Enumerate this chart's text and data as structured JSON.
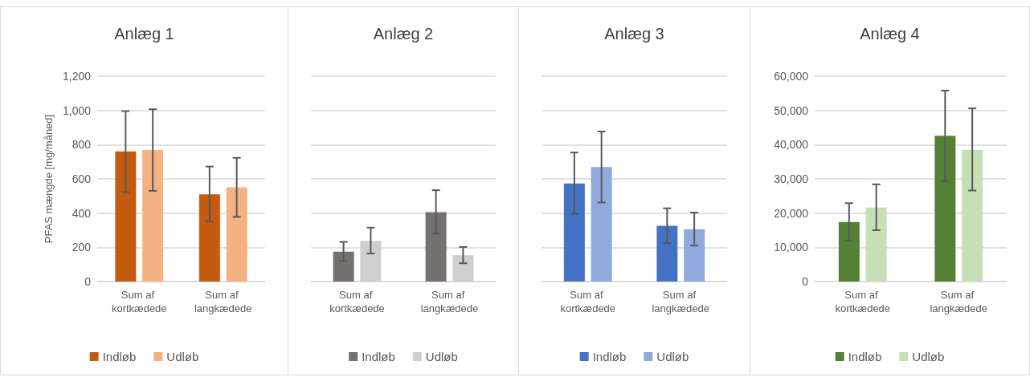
{
  "chart_data": [
    {
      "type": "bar",
      "title": "Anlæg 1",
      "ylabel": "PFAS mængde [mg/måned]",
      "categories": [
        "Sum af kortkædede",
        "Sum af langkædede"
      ],
      "series": [
        {
          "name": "Indløb",
          "color": "#c55a11",
          "values": [
            760,
            510
          ],
          "errors": [
            [
              522,
              996
            ],
            [
              351,
              672
            ]
          ]
        },
        {
          "name": "Udløb",
          "color": "#f4b183",
          "values": [
            769,
            551
          ],
          "errors": [
            [
              530,
              1007
            ],
            [
              378,
              723
            ]
          ]
        }
      ],
      "ylim": [
        0,
        1200
      ],
      "yticks": [
        0,
        200,
        400,
        600,
        800,
        {
          "value": 1000,
          "label": "1,000"
        },
        {
          "value": 1200,
          "label": "1,200"
        }
      ],
      "grid": "y",
      "legend": "bottom"
    },
    {
      "type": "bar",
      "title": "Anlæg 2",
      "categories": [
        "Sum af kortkædede",
        "Sum af langkædede"
      ],
      "series": [
        {
          "name": "Indløb",
          "color": "#767171",
          "values": [
            175,
            405
          ],
          "errors": [
            [
              120,
              232
            ],
            [
              281,
              534
            ]
          ]
        },
        {
          "name": "Udløb",
          "color": "#d0cece",
          "values": [
            238,
            154
          ],
          "errors": [
            [
              164,
              315
            ],
            [
              107,
              202
            ]
          ]
        }
      ],
      "ylim": [
        0,
        1200
      ],
      "yticks": [
        0,
        200,
        400,
        600,
        800,
        1000,
        1200
      ],
      "grid": "y",
      "legend": "bottom",
      "tick_labels": "x"
    },
    {
      "type": "bar",
      "title": "Anlæg 3",
      "categories": [
        "Sum af kortkædede",
        "Sum af langkædede"
      ],
      "series": [
        {
          "name": "Indløb",
          "color": "#4472c4",
          "values": [
            573,
            326
          ],
          "errors": [
            [
              395,
              754
            ],
            [
              224,
              428
            ]
          ]
        },
        {
          "name": "Udløb",
          "color": "#8faadc",
          "values": [
            669,
            306
          ],
          "errors": [
            [
              462,
              877
            ],
            [
              210,
              403
            ]
          ]
        }
      ],
      "ylim": [
        0,
        1200
      ],
      "yticks": [
        0,
        200,
        400,
        600,
        800,
        1000,
        1200
      ],
      "grid": "y",
      "legend": "bottom",
      "tick_labels": "x"
    },
    {
      "type": "bar",
      "title": "Anlæg 4",
      "categories": [
        "Sum af kortkædede",
        "Sum af langkædede"
      ],
      "series": [
        {
          "name": "Indløb",
          "color": "#548235",
          "values": [
            17400,
            42600
          ],
          "errors": [
            [
              12000,
              22900
            ],
            [
              29300,
              55800
            ]
          ]
        },
        {
          "name": "Udløb",
          "color": "#c5e0b4",
          "values": [
            21600,
            38500
          ],
          "errors": [
            [
              15000,
              28400
            ],
            [
              26600,
              50600
            ]
          ]
        }
      ],
      "ylim": [
        0,
        60000
      ],
      "yticks": [
        0,
        {
          "value": 10000,
          "label": "10,000"
        },
        {
          "value": 20000,
          "label": "20,000"
        },
        {
          "value": 30000,
          "label": "30,000"
        },
        {
          "value": 40000,
          "label": "40,000"
        },
        {
          "value": 50000,
          "label": "50,000"
        },
        {
          "value": 60000,
          "label": "60,000"
        }
      ],
      "grid": "y",
      "legend": "bottom"
    }
  ]
}
